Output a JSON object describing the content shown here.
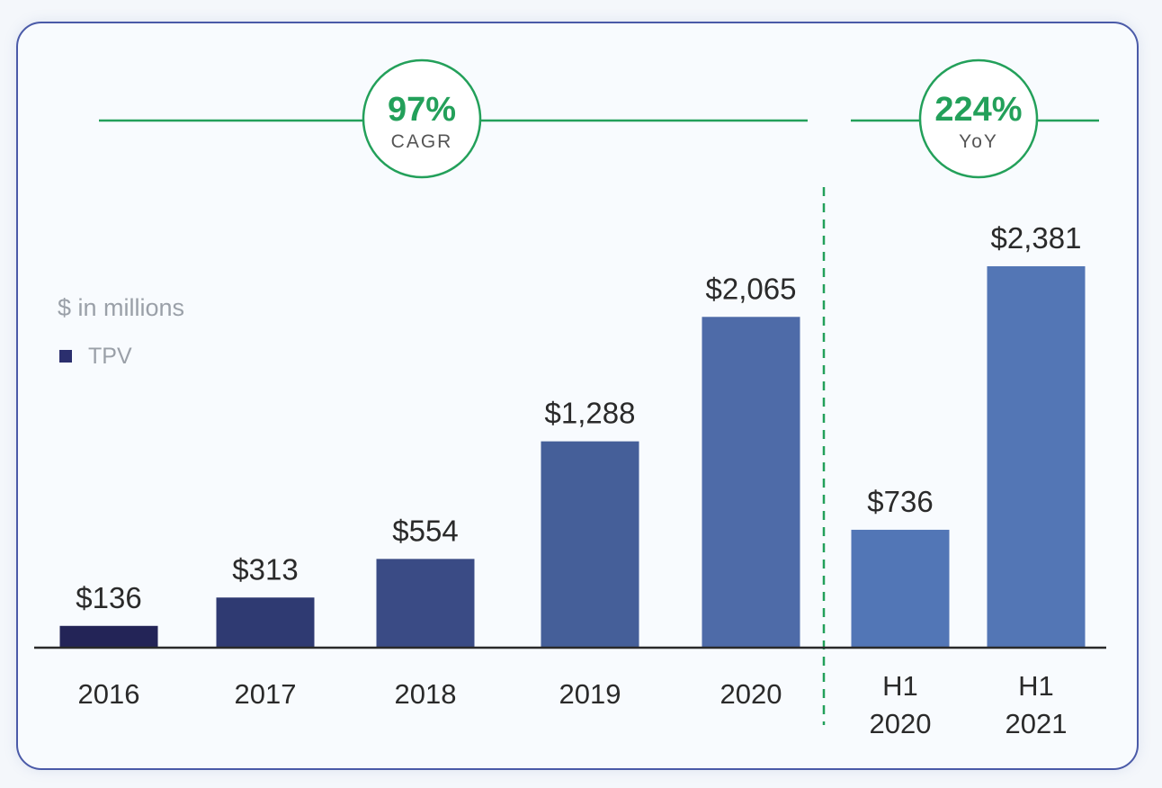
{
  "chart_data": {
    "type": "bar",
    "unit_note": "$ in millions",
    "legend": [
      {
        "label": "TPV",
        "color": "#2b2f6e"
      }
    ],
    "categories": [
      {
        "lines": [
          "2016"
        ]
      },
      {
        "lines": [
          "2017"
        ]
      },
      {
        "lines": [
          "2018"
        ]
      },
      {
        "lines": [
          "2019"
        ]
      },
      {
        "lines": [
          "2020"
        ]
      },
      {
        "lines": [
          "H1",
          "2020"
        ]
      },
      {
        "lines": [
          "H1",
          "2021"
        ]
      }
    ],
    "values": [
      136,
      313,
      554,
      1288,
      2065,
      736,
      2381
    ],
    "value_labels": [
      "$136",
      "$313",
      "$554",
      "$1,288",
      "$2,065",
      "$736",
      "$2,381"
    ],
    "bar_colors": [
      "#232457",
      "#2f3a72",
      "#3a4b85",
      "#455f99",
      "#4e6ba8",
      "#5276b6",
      "#5376b5"
    ],
    "ylim": [
      0,
      2381
    ],
    "annotations": [
      {
        "value": "97%",
        "label": "CAGR",
        "spans": "2016-2020"
      },
      {
        "value": "224%",
        "label": "YoY",
        "spans": "H1 2020-H1 2021"
      }
    ],
    "colors": {
      "accent_green": "#23a05a",
      "axis": "#2a2a2a",
      "value_text": "#2a2a2a",
      "note_text": "#9aa0a8"
    }
  }
}
